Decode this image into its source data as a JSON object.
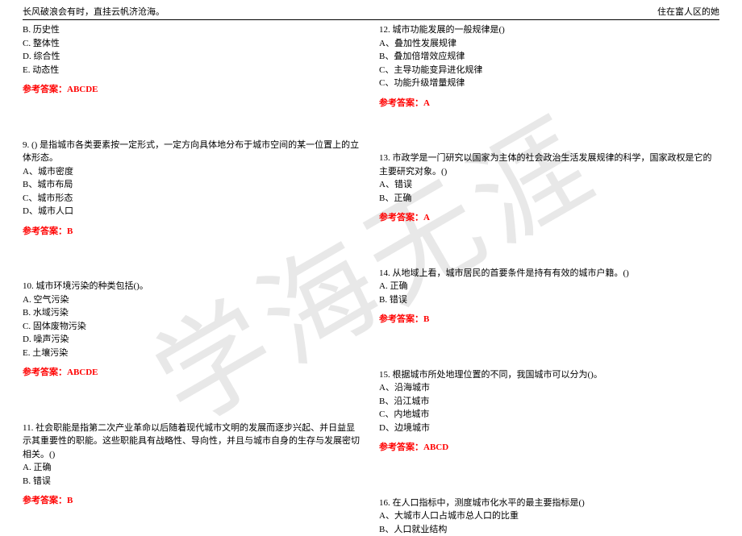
{
  "header": {
    "left": "长风破浪会有时，直挂云帆济沧海。",
    "right": "住在富人区的她"
  },
  "watermark": "学海无涯",
  "left_col": {
    "q8_tail": {
      "opts": [
        "B. 历史性",
        "C. 整体性",
        "D. 综合性",
        "E. 动态性"
      ],
      "answer": "参考答案：ABCDE"
    },
    "q9": {
      "stem": "9. () 是指城市各类要素按一定形式，一定方向具体地分布于城市空间的某一位置上的立体形态。",
      "opts": [
        "A、城市密度",
        "B、城市布局",
        "C、城市形态",
        "D、城市人口"
      ],
      "answer": "参考答案：B"
    },
    "q10": {
      "stem": "10. 城市环境污染的种类包括()。",
      "opts": [
        "A. 空气污染",
        "B. 水域污染",
        "C. 固体废物污染",
        "D. 噪声污染",
        "E. 土壤污染"
      ],
      "answer": "参考答案：ABCDE"
    },
    "q11": {
      "stem": "11. 社会职能是指第二次产业革命以后随着现代城市文明的发展而逐步兴起、并日益显示其重要性的职能。这些职能具有战略性、导向性，并且与城市自身的生存与发展密切相关。()",
      "opts": [
        "A. 正确",
        "B. 错误"
      ],
      "answer": "参考答案：B"
    }
  },
  "right_col": {
    "q12": {
      "stem": "12. 城市功能发展的一般规律是()",
      "opts": [
        "A、叠加性发展规律",
        "B、叠加倍增效应规律",
        "C、主导功能变异进化规律",
        "C、功能升级增量规律"
      ],
      "answer": "参考答案：A"
    },
    "q13": {
      "stem": "13. 市政学是一门研究以国家为主体的社会政治生活发展规律的科学，国家政权是它的主要研究对象。()",
      "opts": [
        "A、错误",
        "B、正确"
      ],
      "answer": "参考答案：A"
    },
    "q14": {
      "stem": "14. 从地域上看，城市居民的首要条件是持有有效的城市户籍。()",
      "opts": [
        "A. 正确",
        "B. 错误"
      ],
      "answer": "参考答案：B"
    },
    "q15": {
      "stem": "15. 根据城市所处地理位置的不同，我国城市可以分为()。",
      "opts": [
        "A、沿海城市",
        "B、沿江城市",
        "C、内地城市",
        "D、边境城市"
      ],
      "answer": "参考答案：ABCD"
    },
    "q16": {
      "stem": "16. 在人口指标中，测度城市化水平的最主要指标是()",
      "opts": [
        "A、大城市人口占城市总人口的比重",
        "B、人口就业结构"
      ]
    }
  }
}
